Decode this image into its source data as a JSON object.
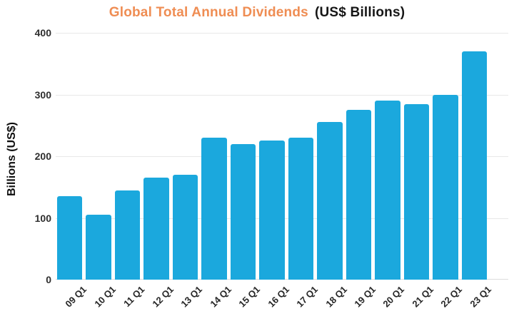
{
  "title": {
    "highlight": "Global Total Annual Dividends",
    "suffix": "(US$ Billions)"
  },
  "y_axis": {
    "label": "Billions (US$)",
    "ticks": [
      0,
      100,
      200,
      300,
      400
    ]
  },
  "chart_data": {
    "type": "bar",
    "categories": [
      "09 Q1",
      "10 Q1",
      "11 Q1",
      "12 Q1",
      "13 Q1",
      "14 Q1",
      "15 Q1",
      "16 Q1",
      "17 Q1",
      "18 Q1",
      "19 Q1",
      "20 Q1",
      "21 Q1",
      "22 Q1",
      "23 Q1"
    ],
    "values": [
      135,
      105,
      145,
      165,
      170,
      230,
      220,
      225,
      230,
      255,
      275,
      290,
      284,
      300,
      370
    ],
    "title": "Global Total Annual Dividends (US$ Billions)",
    "xlabel": "",
    "ylabel": "Billions (US$)",
    "ylim": [
      0,
      400
    ],
    "grid": true,
    "legend": false,
    "x_tick_rotation": 45
  },
  "colors": {
    "bar": "#1BA8DD",
    "title_highlight": "#EF8D53",
    "title_text": "#161616",
    "tick_text": "#2e2e2e",
    "grid": "#e8e8e8",
    "axis_line": "#dcdcdc",
    "background": "#ffffff"
  }
}
